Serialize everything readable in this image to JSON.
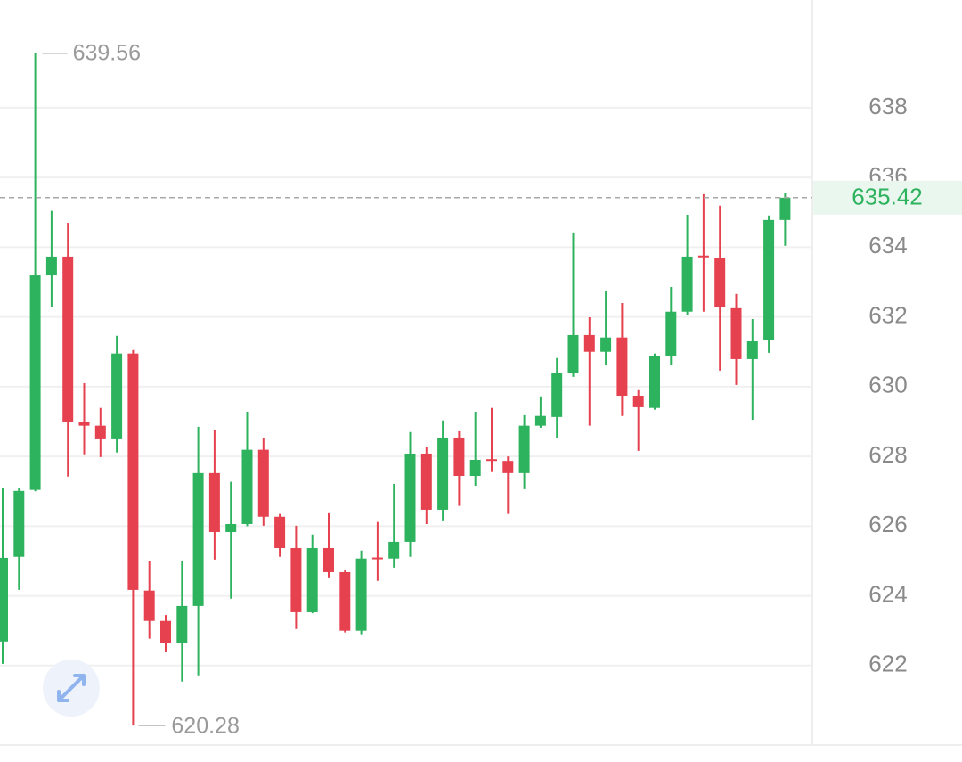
{
  "chart_data": {
    "type": "candlestick",
    "ylim": [
      619.72,
      641.09
    ],
    "yticks": [
      622,
      624,
      626,
      628,
      630,
      632,
      634,
      636,
      638
    ],
    "grid": true,
    "up_color": "#2db35d",
    "down_color": "#e5414f",
    "open": [
      622.69,
      625.12,
      627.04,
      633.19,
      633.73,
      628.98,
      628.88,
      628.49,
      630.95,
      624.15,
      623.28,
      622.64,
      623.71,
      627.52,
      625.83,
      626.06,
      628.19,
      626.27,
      625.37,
      623.53,
      625.37,
      624.68,
      623.0,
      625.1,
      625.07,
      625.55,
      628.08,
      626.47,
      628.54,
      627.44,
      627.92,
      627.87,
      627.52,
      628.88,
      629.13,
      630.38,
      631.48,
      631.0,
      631.41,
      629.74,
      629.39,
      630.87,
      632.15,
      633.76,
      633.68,
      632.25,
      630.79,
      631.33,
      634.78
    ],
    "high": [
      627.09,
      627.09,
      639.56,
      635.04,
      634.7,
      630.1,
      629.39,
      631.46,
      631.05,
      624.99,
      623.45,
      624.99,
      628.85,
      628.75,
      627.27,
      629.28,
      628.52,
      626.35,
      626.01,
      625.76,
      626.37,
      624.73,
      625.3,
      626.12,
      627.21,
      628.7,
      628.26,
      629.03,
      628.72,
      629.28,
      629.39,
      628.0,
      629.18,
      629.72,
      630.82,
      634.42,
      631.99,
      632.73,
      632.4,
      629.9,
      630.95,
      632.86,
      634.93,
      635.52,
      635.19,
      632.66,
      631.94,
      634.91,
      635.55
    ],
    "low": [
      622.05,
      624.17,
      627.0,
      632.27,
      627.42,
      628.06,
      627.98,
      628.11,
      620.28,
      622.77,
      622.38,
      621.54,
      621.72,
      625.04,
      623.92,
      626.0,
      626.01,
      625.12,
      623.05,
      623.5,
      624.53,
      622.95,
      622.9,
      624.43,
      624.81,
      625.12,
      626.06,
      626.14,
      626.58,
      627.16,
      627.55,
      626.35,
      627.06,
      628.82,
      628.52,
      630.28,
      628.88,
      630.61,
      629.16,
      628.16,
      629.34,
      630.61,
      632.04,
      632.15,
      630.46,
      630.05,
      629.05,
      630.97,
      634.04
    ],
    "close": [
      625.09,
      627.01,
      633.19,
      633.73,
      629.0,
      628.88,
      628.49,
      630.95,
      624.17,
      623.28,
      622.64,
      623.71,
      627.52,
      625.83,
      626.06,
      628.19,
      626.27,
      625.37,
      623.53,
      625.37,
      624.68,
      623.0,
      625.07,
      625.05,
      625.55,
      628.08,
      626.47,
      628.54,
      627.44,
      627.9,
      627.87,
      627.52,
      628.88,
      629.16,
      630.38,
      631.48,
      631.0,
      631.41,
      629.74,
      629.41,
      630.87,
      632.15,
      633.73,
      633.71,
      632.27,
      630.79,
      631.3,
      634.78,
      635.42
    ]
  }
}
